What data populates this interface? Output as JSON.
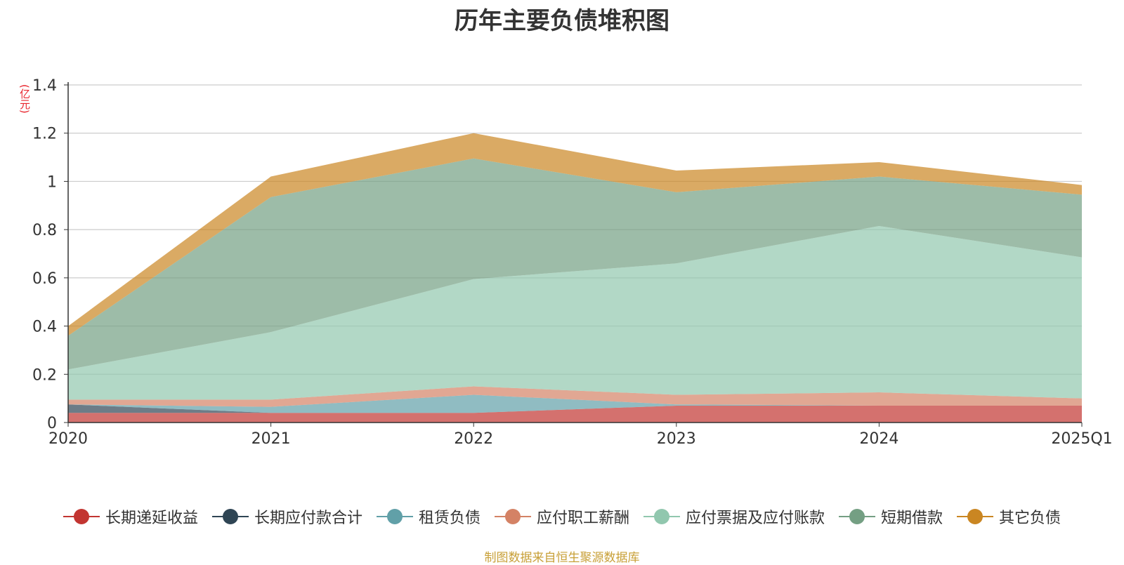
{
  "chart_data": {
    "type": "area",
    "stacked": true,
    "title": "历年主要负债堆积图",
    "ylabel": "(亿元)",
    "categories": [
      "2020",
      "2021",
      "2022",
      "2023",
      "2024",
      "2025Q1"
    ],
    "ylim": [
      0,
      1.4
    ],
    "yticks": [
      0,
      0.2,
      0.4,
      0.6,
      0.8,
      1,
      1.2,
      1.4
    ],
    "ytick_labels": [
      "0",
      "0.2",
      "0.4",
      "0.6",
      "0.8",
      "1",
      "1.2",
      "1.4"
    ],
    "series": [
      {
        "name": "长期递延收益",
        "color": "#c23531",
        "values": [
          0.04,
          0.04,
          0.04,
          0.07,
          0.07,
          0.07
        ]
      },
      {
        "name": "长期应付款合计",
        "color": "#2f4554",
        "values": [
          0.035,
          0.0,
          0.0,
          0.0,
          0.0,
          0.0
        ]
      },
      {
        "name": "租赁负债",
        "color": "#61a0a8",
        "values": [
          0.0,
          0.025,
          0.075,
          0.005,
          0.0,
          0.0
        ]
      },
      {
        "name": "应付职工薪酬",
        "color": "#d48265",
        "values": [
          0.02,
          0.03,
          0.035,
          0.04,
          0.055,
          0.03
        ]
      },
      {
        "name": "应付票据及应付账款",
        "color": "#91c7ae",
        "values": [
          0.125,
          0.28,
          0.445,
          0.545,
          0.69,
          0.585
        ]
      },
      {
        "name": "短期借款",
        "color": "#749f83",
        "values": [
          0.14,
          0.56,
          0.5,
          0.295,
          0.205,
          0.26
        ]
      },
      {
        "name": "其它负债",
        "color": "#ca8622",
        "values": [
          0.04,
          0.085,
          0.105,
          0.09,
          0.06,
          0.04
        ]
      }
    ]
  },
  "source_text": "制图数据来自恒生聚源数据库",
  "source_color": "#c8a038"
}
